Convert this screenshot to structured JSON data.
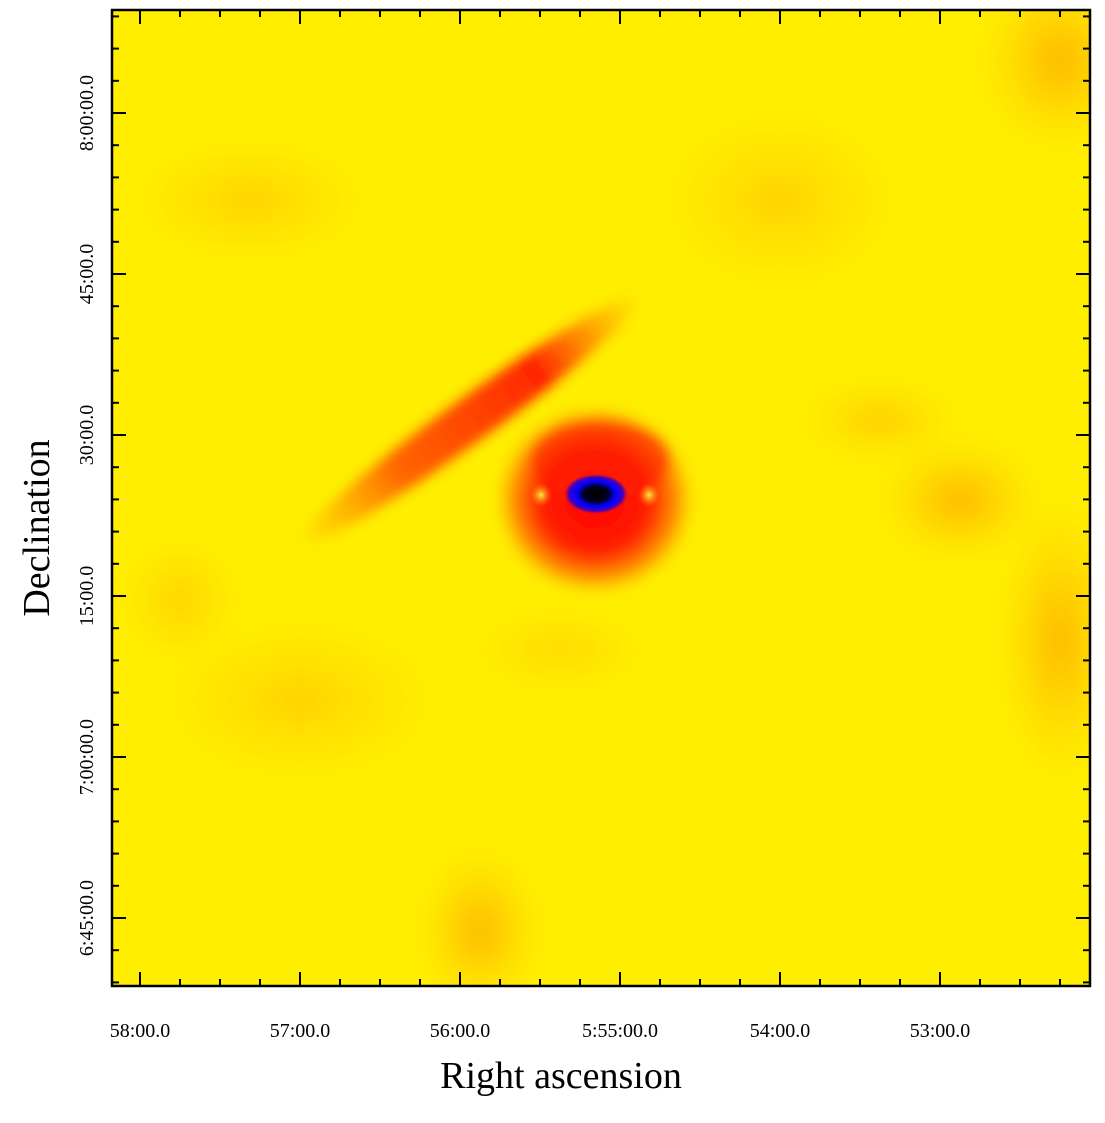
{
  "chart_data": {
    "type": "heatmap",
    "title": "",
    "xlabel": "Right ascension",
    "ylabel": "Declination",
    "x_ticks": [
      {
        "label": "58:00.0",
        "ra_seconds_offset": 180
      },
      {
        "label": "57:00.0",
        "ra_seconds_offset": 120
      },
      {
        "label": "56:00.0",
        "ra_seconds_offset": 60
      },
      {
        "label": "5:55:00.0",
        "ra_seconds_offset": 0
      },
      {
        "label": "54:00.0",
        "ra_seconds_offset": -60
      },
      {
        "label": "53:00.0",
        "ra_seconds_offset": -120
      }
    ],
    "y_ticks": [
      {
        "label": "8:00:00.0",
        "dec_arcmin": 480
      },
      {
        "label": "45:00.0",
        "dec_arcmin": 465
      },
      {
        "label": "30:00.0",
        "dec_arcmin": 450
      },
      {
        "label": "15:00.0",
        "dec_arcmin": 435
      },
      {
        "label": "7:00:00.0",
        "dec_arcmin": 420
      },
      {
        "label": "6:45:00.0",
        "dec_arcmin": 405
      }
    ],
    "xlim_ra_seconds_offset": [
      183,
      -123
    ],
    "ylim_dec_arcmin": [
      401,
      491
    ],
    "colormap": [
      "#000000",
      "#0000ff",
      "#ff0000",
      "#ff9900",
      "#ffff00"
    ],
    "features": [
      {
        "name": "bright source",
        "ra_seconds_offset": -9,
        "dec_arcmin": 444.5
      }
    ],
    "grid": false
  }
}
